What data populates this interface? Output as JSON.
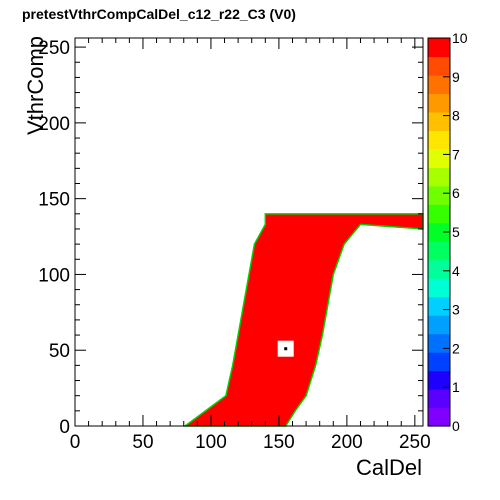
{
  "chart_data": {
    "type": "heatmap",
    "title": "pretestVthrCompCalDel_c12_r22_C3 (V0)",
    "xlabel": "CalDel",
    "ylabel": "VthrComp",
    "xlim": [
      0,
      256
    ],
    "ylim": [
      0,
      256
    ],
    "xticks": [
      0,
      50,
      100,
      150,
      200,
      250
    ],
    "yticks": [
      0,
      50,
      100,
      150,
      200,
      250
    ],
    "zlim": [
      0,
      10
    ],
    "zticks": [
      0,
      1,
      2,
      3,
      4,
      5,
      6,
      7,
      8,
      9,
      10
    ],
    "palette": [
      "#8000ff",
      "#5a00ff",
      "#1e00ff",
      "#0040ff",
      "#0070ff",
      "#00a0ff",
      "#00d0ff",
      "#00ffd5",
      "#00ff9b",
      "#00ff5f",
      "#00ff26",
      "#35ff00",
      "#6fff00",
      "#a8ff00",
      "#e1ff00",
      "#ffe600",
      "#ffc000",
      "#ff9900",
      "#ff7200",
      "#ff4c00",
      "#ff0000"
    ],
    "region": {
      "value": 10,
      "left_edge": [
        [
          0,
          81
        ],
        [
          10,
          96
        ],
        [
          20,
          111
        ],
        [
          40,
          116
        ],
        [
          60,
          120
        ],
        [
          80,
          124
        ],
        [
          100,
          128
        ],
        [
          120,
          132
        ],
        [
          133,
          140
        ]
      ],
      "right_edge": [
        [
          0,
          155
        ],
        [
          10,
          162
        ],
        [
          20,
          170
        ],
        [
          40,
          177
        ],
        [
          60,
          182
        ],
        [
          80,
          186
        ],
        [
          100,
          190
        ],
        [
          120,
          198
        ],
        [
          133,
          210
        ]
      ],
      "plateau": {
        "x_from": 140,
        "x_to": 256,
        "y_from": 130,
        "y_to": 140
      }
    },
    "hole": {
      "x": 155,
      "y": 51,
      "value": 0
    }
  }
}
